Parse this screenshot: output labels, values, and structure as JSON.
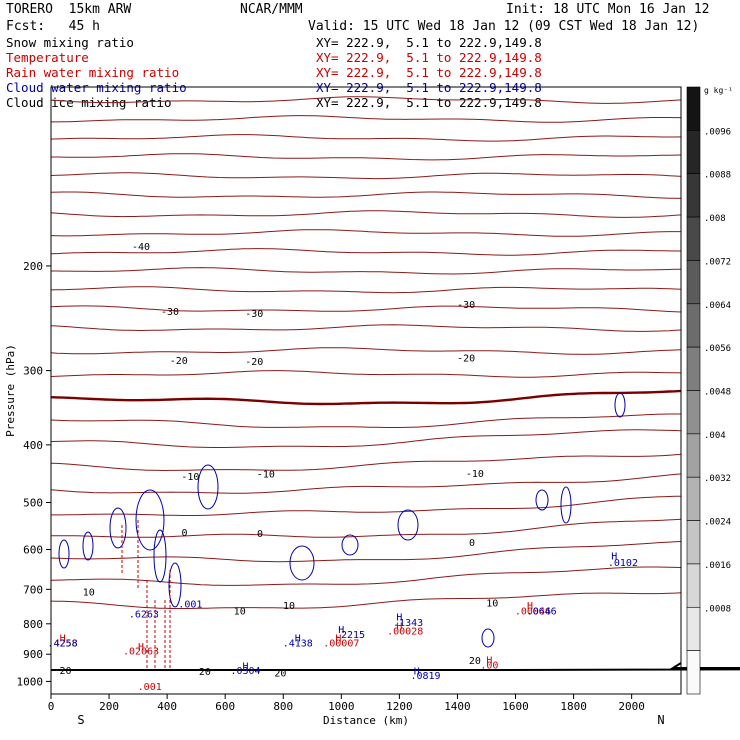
{
  "header": {
    "model": "TORERO  15km ARW",
    "center": "NCAR/MMM",
    "init": "Init: 18 UTC Mon 16 Jan 12",
    "fcst": "Fcst:   45 h",
    "valid": "Valid: 15 UTC Wed 18 Jan 12 (09 CST Wed 18 Jan 12)"
  },
  "legend": [
    {
      "name": "Snow mixing ratio",
      "color": "#000000",
      "xy": "XY= 222.9,  5.1 to 222.9,149.8"
    },
    {
      "name": "Temperature",
      "color": "#cc0000",
      "xy": "XY= 222.9,  5.1 to 222.9,149.8"
    },
    {
      "name": "Rain water mixing ratio",
      "color": "#cc0000",
      "xy": "XY= 222.9,  5.1 to 222.9,149.8"
    },
    {
      "name": "Cloud water mixing ratio",
      "color": "#0000aa",
      "xy": "XY= 222.9,  5.1 to 222.9,149.8"
    },
    {
      "name": "Cloud ice mixing ratio",
      "color": "#000000",
      "xy": "XY= 222.9,  5.1 to 222.9,149.8"
    }
  ],
  "colorbar": {
    "unit": "g kg⁻¹",
    "labels": [
      ".0096",
      ".0088",
      ".008",
      ".0072",
      ".0064",
      ".0056",
      ".0048",
      ".004",
      ".0032",
      ".0024",
      ".0016",
      ".0008"
    ]
  },
  "axes": {
    "ylabel": "Pressure (hPa)",
    "xlabel": "Distance (km)",
    "south": "S",
    "north": "N"
  },
  "chart_data": {
    "type": "contour-cross-section",
    "xlim": [
      0,
      2170
    ],
    "ylim": [
      1050,
      100
    ],
    "yscale": "log",
    "x_ticks": [
      0,
      200,
      400,
      600,
      800,
      1000,
      1200,
      1400,
      1600,
      1800,
      2000
    ],
    "y_ticks": [
      200,
      300,
      400,
      500,
      600,
      700,
      800,
      900,
      1000
    ],
    "temperature_labels": [
      {
        "text": "-40",
        "x": 310,
        "p": 185
      },
      {
        "text": "-30",
        "x": 410,
        "p": 238
      },
      {
        "text": "-30",
        "x": 700,
        "p": 240
      },
      {
        "text": "-30",
        "x": 1430,
        "p": 232
      },
      {
        "text": "-20",
        "x": 440,
        "p": 288
      },
      {
        "text": "-20",
        "x": 700,
        "p": 289
      },
      {
        "text": "-20",
        "x": 1430,
        "p": 285
      },
      {
        "text": "-10",
        "x": 480,
        "p": 451
      },
      {
        "text": "-10",
        "x": 740,
        "p": 447
      },
      {
        "text": "-10",
        "x": 1460,
        "p": 446
      },
      {
        "text": "0",
        "x": 460,
        "p": 561
      },
      {
        "text": "0",
        "x": 720,
        "p": 563
      },
      {
        "text": "0",
        "x": 1450,
        "p": 583
      },
      {
        "text": "10",
        "x": 130,
        "p": 706
      },
      {
        "text": "10",
        "x": 650,
        "p": 760
      },
      {
        "text": "10",
        "x": 820,
        "p": 744
      },
      {
        "text": "10",
        "x": 1520,
        "p": 737
      },
      {
        "text": "20",
        "x": 50,
        "p": 956
      },
      {
        "text": "20",
        "x": 530,
        "p": 961
      },
      {
        "text": "20",
        "x": 790,
        "p": 967
      },
      {
        "text": "20",
        "x": 1460,
        "p": 920
      }
    ],
    "extrema_labels": [
      {
        "text": "H",
        "x": 40,
        "p": 843,
        "color": "#cc0000"
      },
      {
        "text": ".4258",
        "x": 40,
        "p": 860,
        "color": "#cc0000"
      },
      {
        "text": ".4258",
        "x": 40,
        "p": 860,
        "color": "#0000aa"
      },
      {
        "text": ".6263",
        "x": 320,
        "p": 768,
        "color": "#0000aa"
      },
      {
        "text": ".001",
        "x": 480,
        "p": 740,
        "color": "#0000aa"
      },
      {
        "text": "H",
        "x": 310,
        "p": 871,
        "color": "#cc0000"
      },
      {
        "text": ".02063",
        "x": 310,
        "p": 888,
        "color": "#cc0000"
      },
      {
        "text": ".001",
        "x": 340,
        "p": 1018,
        "color": "#cc0000"
      },
      {
        "text": "H",
        "x": 670,
        "p": 940,
        "color": "#0000aa"
      },
      {
        "text": ".0304",
        "x": 670,
        "p": 957,
        "color": "#0000aa"
      },
      {
        "text": "H",
        "x": 850,
        "p": 843,
        "color": "#0000aa"
      },
      {
        "text": ".4138",
        "x": 850,
        "p": 860,
        "color": "#0000aa"
      },
      {
        "text": "H",
        "x": 1000,
        "p": 817,
        "color": "#0000aa"
      },
      {
        "text": ".2215",
        "x": 1030,
        "p": 833,
        "color": "#0000aa"
      },
      {
        "text": "H",
        "x": 990,
        "p": 843,
        "color": "#cc0000"
      },
      {
        "text": ".00007",
        "x": 1000,
        "p": 860,
        "color": "#cc0000"
      },
      {
        "text": "H",
        "x": 1200,
        "p": 777,
        "color": "#0000aa"
      },
      {
        "text": ".1343",
        "x": 1230,
        "p": 794,
        "color": "#0000aa"
      },
      {
        "text": "H",
        "x": 1200,
        "p": 805,
        "color": "#cc0000"
      },
      {
        "text": ".00028",
        "x": 1220,
        "p": 821,
        "color": "#cc0000"
      },
      {
        "text": "H",
        "x": 1260,
        "p": 958,
        "color": "#0000aa"
      },
      {
        "text": ".0819",
        "x": 1290,
        "p": 975,
        "color": "#0000aa"
      },
      {
        "text": "H",
        "x": 1510,
        "p": 918,
        "color": "#cc0000"
      },
      {
        "text": ".00",
        "x": 1510,
        "p": 937,
        "color": "#cc0000"
      },
      {
        "text": "H",
        "x": 1650,
        "p": 744,
        "color": "#cc0000"
      },
      {
        "text": ".00046",
        "x": 1660,
        "p": 760,
        "color": "#cc0000"
      },
      {
        "text": ".0646",
        "x": 1690,
        "p": 760,
        "color": "#0000aa"
      },
      {
        "text": "H",
        "x": 1940,
        "p": 614,
        "color": "#0000aa"
      },
      {
        "text": ".0102",
        "x": 1970,
        "p": 630,
        "color": "#0000aa"
      }
    ]
  }
}
